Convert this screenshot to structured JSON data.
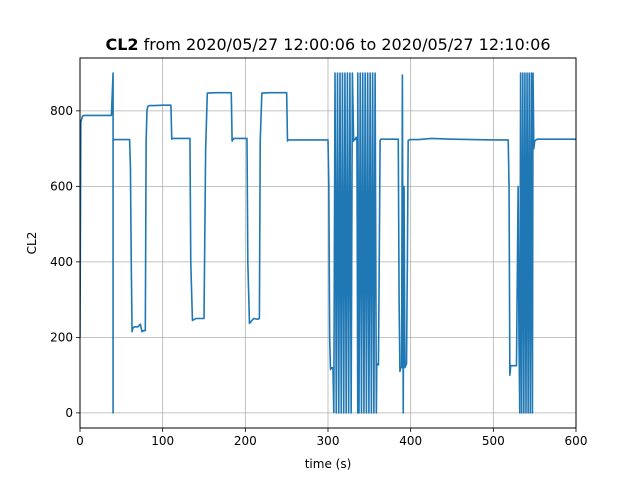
{
  "chart_data": {
    "type": "line",
    "title_bold": "CL2",
    "title_rest": " from 2020/05/27 12:00:06 to 2020/05/27 12:10:06",
    "xlabel": "time (s)",
    "ylabel": "CL2",
    "xlim": [
      0,
      600
    ],
    "ylim": [
      -40,
      940
    ],
    "xticks": [
      0,
      100,
      200,
      300,
      400,
      500,
      600
    ],
    "yticks": [
      0,
      200,
      400,
      600,
      800
    ],
    "grid": true,
    "line_color": "#1f77b4",
    "series": [
      {
        "x": [
          0,
          1,
          3,
          5,
          8,
          20,
          30,
          37,
          38,
          40,
          40,
          40,
          41,
          42,
          45,
          50,
          55,
          60,
          61,
          62,
          63,
          64,
          66,
          70,
          73,
          75,
          77,
          79,
          80,
          81,
          82,
          84,
          90,
          100,
          108,
          110,
          111,
          112,
          115,
          125,
          133,
          134,
          136,
          140,
          148,
          150,
          152,
          154,
          165,
          180,
          183,
          184,
          186,
          195,
          200,
          202,
          203,
          205,
          210,
          215,
          217,
          218,
          220,
          230,
          245,
          250,
          251,
          252,
          255,
          270,
          290,
          298,
          300,
          301,
          302,
          303,
          304,
          305,
          306,
          307
        ],
        "y": [
          200,
          770,
          786,
          788,
          788,
          788,
          788,
          788,
          788,
          900,
          0,
          720,
          724,
          724,
          724,
          724,
          724,
          724,
          650,
          400,
          215,
          225,
          228,
          228,
          235,
          215,
          218,
          218,
          720,
          800,
          812,
          814,
          814,
          815,
          815,
          815,
          725,
          727,
          727,
          727,
          727,
          400,
          245,
          250,
          250,
          250,
          700,
          847,
          848,
          848,
          848,
          720,
          727,
          727,
          727,
          727,
          400,
          237,
          250,
          248,
          250,
          720,
          847,
          848,
          848,
          848,
          720,
          723,
          723,
          723,
          723,
          723,
          723,
          600,
          200,
          115,
          120,
          118,
          120,
          0
        ]
      },
      {
        "x": [
          307,
          308.5,
          310,
          311.5,
          313,
          314.5,
          316,
          317.5,
          319,
          320.5,
          322,
          323.5,
          325,
          326.5,
          328,
          329.5,
          331,
          332,
          333,
          334,
          335,
          336,
          336,
          337.5,
          339,
          340.5,
          342,
          343.5,
          345,
          346.5,
          348,
          349.5,
          351,
          352.5,
          354,
          355.5,
          357,
          358.5,
          359,
          360,
          361,
          362,
          363,
          364,
          366
        ],
        "y": [
          0,
          900,
          0,
          900,
          0,
          900,
          0,
          900,
          0,
          900,
          0,
          900,
          0,
          900,
          0,
          900,
          720,
          725,
          724,
          730,
          725,
          0,
          900,
          0,
          900,
          0,
          900,
          0,
          900,
          0,
          900,
          0,
          900,
          0,
          900,
          0,
          900,
          0,
          125,
          130,
          127,
          400,
          722,
          725,
          725
        ]
      },
      {
        "x": [
          366,
          375,
          385,
          386,
          387,
          388,
          389,
          390,
          391,
          392,
          393,
          395,
          396,
          397,
          400,
          410,
          425,
          450,
          475,
          500,
          518,
          519,
          520,
          521,
          522,
          525,
          528,
          530,
          531,
          532,
          533,
          534.3,
          535.6,
          536.9,
          538.2,
          539.5,
          540.8,
          542.1,
          543.4,
          544.7,
          546,
          547.3,
          548,
          549,
          550,
          553,
          560,
          580,
          600
        ],
        "y": [
          725,
          725,
          725,
          300,
          110,
          120,
          120,
          895,
          0,
          600,
          120,
          130,
          400,
          722,
          724,
          724,
          727,
          725,
          724,
          723,
          723,
          600,
          100,
          125,
          125,
          125,
          125,
          600,
          200,
          0,
          900,
          0,
          900,
          0,
          900,
          0,
          900,
          0,
          900,
          0,
          900,
          0,
          900,
          700,
          720,
          725,
          725,
          725,
          725
        ]
      }
    ]
  }
}
